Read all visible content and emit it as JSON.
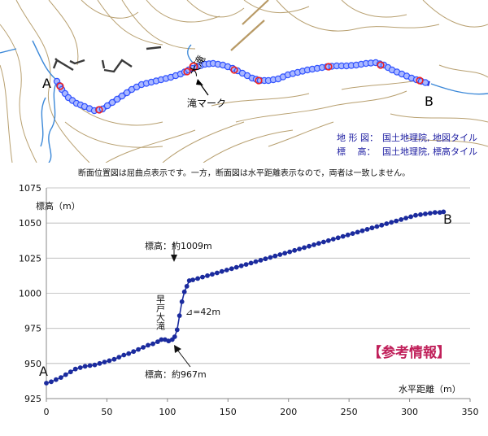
{
  "map": {
    "label_a": "A",
    "label_b": "B",
    "waterfall_name": "大滝",
    "waterfall_marker_label": "滝マーク",
    "credits": [
      {
        "key": "地 形 図：",
        "value": "国土地理院, 地図タイル"
      },
      {
        "key": "標　 高：",
        "value": "国土地理院, 標高タイル"
      }
    ],
    "colors": {
      "route": "#1a1acc",
      "vertex": "#3355ff",
      "mark": "#ee2222",
      "river": "#3b88d8",
      "contour": "#b8a070"
    }
  },
  "note": "断面位置図は屈曲点表示です。一方，断面図は水平距離表示なので，両者は一致しません。",
  "chart_data": {
    "type": "line",
    "ylabel": "標高（m）",
    "xlabel": "水平距離（m）",
    "xlim": [
      0,
      350
    ],
    "ylim": [
      925,
      1075
    ],
    "x_ticks": [
      0,
      50,
      100,
      150,
      200,
      250,
      300,
      350
    ],
    "y_ticks": [
      925,
      950,
      975,
      1000,
      1025,
      1050,
      1075
    ],
    "grid": "horizontal",
    "series": [
      {
        "color": "#1b2b9e",
        "points": [
          [
            0,
            936
          ],
          [
            4,
            937
          ],
          [
            8,
            938.5
          ],
          [
            12,
            940
          ],
          [
            16,
            942
          ],
          [
            20,
            944
          ],
          [
            24,
            946
          ],
          [
            28,
            947
          ],
          [
            32,
            948
          ],
          [
            36,
            948.5
          ],
          [
            40,
            949
          ],
          [
            44,
            950
          ],
          [
            48,
            951
          ],
          [
            52,
            952
          ],
          [
            56,
            953
          ],
          [
            60,
            954.5
          ],
          [
            64,
            956
          ],
          [
            68,
            957
          ],
          [
            72,
            958.5
          ],
          [
            76,
            960
          ],
          [
            80,
            961.5
          ],
          [
            84,
            963
          ],
          [
            88,
            964
          ],
          [
            92,
            965.5
          ],
          [
            95,
            967
          ],
          [
            98,
            967
          ],
          [
            101,
            966
          ],
          [
            104,
            967
          ],
          [
            106,
            969
          ],
          [
            108,
            974
          ],
          [
            110,
            984
          ],
          [
            112,
            994
          ],
          [
            114,
            1001
          ],
          [
            116,
            1005
          ],
          [
            118,
            1009
          ],
          [
            121,
            1009.5
          ],
          [
            125,
            1010.5
          ],
          [
            129,
            1011.5
          ],
          [
            133,
            1012.5
          ],
          [
            137,
            1013.5
          ],
          [
            141,
            1014.5
          ],
          [
            145,
            1015.5
          ],
          [
            149,
            1016.5
          ],
          [
            153,
            1017.5
          ],
          [
            157,
            1018.5
          ],
          [
            161,
            1019.5
          ],
          [
            165,
            1020.5
          ],
          [
            169,
            1021.5
          ],
          [
            173,
            1022.5
          ],
          [
            177,
            1023.5
          ],
          [
            181,
            1024.5
          ],
          [
            185,
            1025.5
          ],
          [
            189,
            1026.5
          ],
          [
            193,
            1027.5
          ],
          [
            197,
            1028.5
          ],
          [
            201,
            1029.5
          ],
          [
            205,
            1030.5
          ],
          [
            209,
            1031.5
          ],
          [
            213,
            1032.5
          ],
          [
            217,
            1033.5
          ],
          [
            221,
            1034.5
          ],
          [
            225,
            1035.5
          ],
          [
            229,
            1036.5
          ],
          [
            233,
            1037.5
          ],
          [
            237,
            1038.5
          ],
          [
            241,
            1039.5
          ],
          [
            245,
            1040.5
          ],
          [
            249,
            1041.5
          ],
          [
            253,
            1042.5
          ],
          [
            257,
            1043.5
          ],
          [
            261,
            1044.5
          ],
          [
            265,
            1045.5
          ],
          [
            269,
            1046.5
          ],
          [
            273,
            1047.5
          ],
          [
            277,
            1048.5
          ],
          [
            281,
            1049.5
          ],
          [
            285,
            1050.5
          ],
          [
            289,
            1051.5
          ],
          [
            293,
            1052.5
          ],
          [
            297,
            1053.5
          ],
          [
            301,
            1054.5
          ],
          [
            305,
            1055.5
          ],
          [
            309,
            1056
          ],
          [
            313,
            1056.5
          ],
          [
            317,
            1057
          ],
          [
            321,
            1057.5
          ],
          [
            325,
            1057.5
          ],
          [
            328,
            1058
          ]
        ]
      }
    ],
    "annotations": {
      "start": "A",
      "end": "B",
      "top_label": "標高：約1009m",
      "bottom_label": "標高：約967m",
      "fall_name": "早戸大滝",
      "height_diff": "⊿=42m",
      "reference": "【参考情報】"
    }
  }
}
